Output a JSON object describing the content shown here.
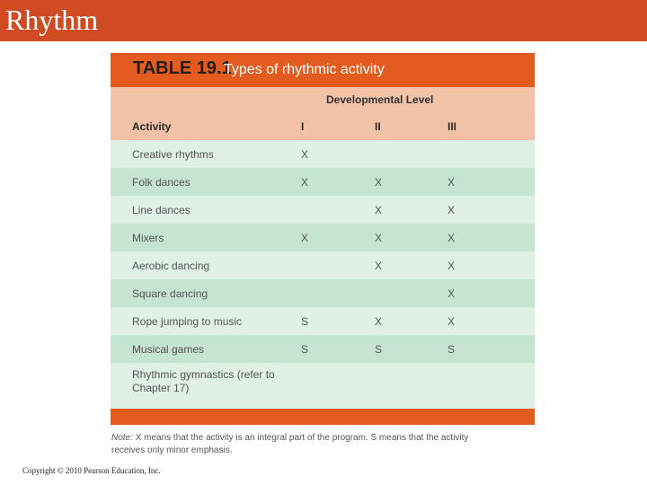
{
  "slide": {
    "title": "Rhythm",
    "copyright": "Copyright © 2010 Pearson Education, Inc."
  },
  "table": {
    "number": "TABLE 19.1",
    "caption": "Types of rhythmic activity",
    "group_header": "Developmental Level",
    "columns": [
      "Activity",
      "I",
      "II",
      "III"
    ],
    "rows": [
      {
        "activity": "Creative rhythms",
        "I": "X",
        "II": "",
        "III": ""
      },
      {
        "activity": "Folk dances",
        "I": "X",
        "II": "X",
        "III": "X"
      },
      {
        "activity": "Line dances",
        "I": "",
        "II": "X",
        "III": "X"
      },
      {
        "activity": "Mixers",
        "I": "X",
        "II": "X",
        "III": "X"
      },
      {
        "activity": "Aerobic dancing",
        "I": "",
        "II": "X",
        "III": "X"
      },
      {
        "activity": "Square dancing",
        "I": "",
        "II": "",
        "III": "X"
      },
      {
        "activity": "Rope jumping to music",
        "I": "S",
        "II": "X",
        "III": "X"
      },
      {
        "activity": "Musical games",
        "I": "S",
        "II": "S",
        "III": "S"
      },
      {
        "activity": "Rhythmic gymnastics (refer to Chapter 17)",
        "I": "",
        "II": "",
        "III": ""
      }
    ],
    "note_label": "Note:",
    "note_text": "X means that the activity is an integral part of the program. S means that the activity receives only minor emphasis."
  },
  "colors": {
    "header_bar": "#d04a22",
    "table_accent": "#e35b1e",
    "peach": "#f4c2a6",
    "row_light": "#dff0e5",
    "row_dark": "#c6e4d2"
  }
}
